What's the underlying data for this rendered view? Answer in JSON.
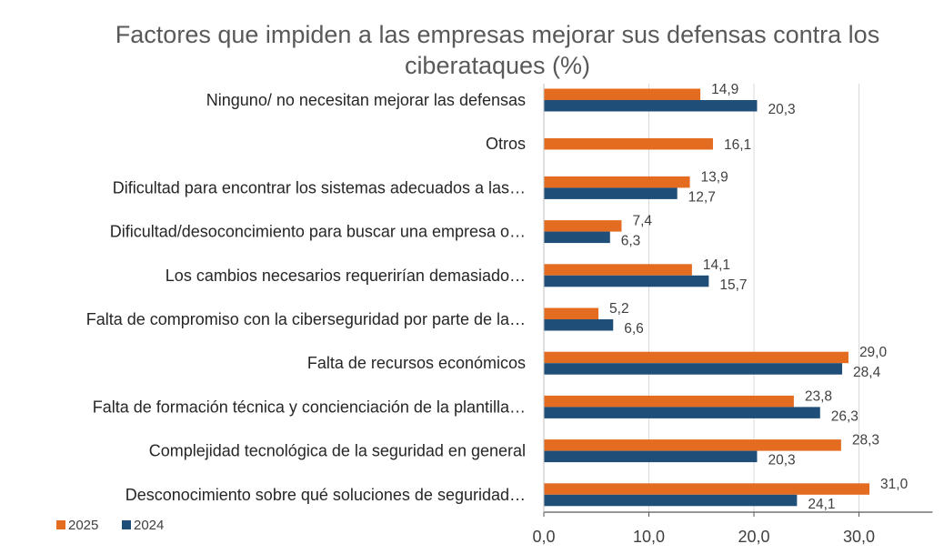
{
  "chart_data": {
    "type": "bar",
    "orientation": "horizontal",
    "title": "Factores que impiden a las empresas mejorar sus defensas contra los ciberataques (%)",
    "title_lines": [
      "Factores que impiden a las empresas mejorar sus defensas contra los",
      "ciberataques (%)"
    ],
    "categories": [
      "Ninguno/ no necesitan mejorar las defensas",
      "Otros",
      "Dificultad para encontrar los sistemas adecuados a las…",
      "Dificultad/desoconcimiento para buscar una empresa o…",
      "Los cambios necesarios requerirían demasiado…",
      "Falta de compromiso con la ciberseguridad por parte de la…",
      "Falta de recursos económicos",
      "Falta de formación técnica y concienciación de la plantilla…",
      "Complejidad tecnológica de la seguridad en general",
      "Desconocimiento sobre qué soluciones de seguridad…"
    ],
    "series": [
      {
        "name": "2025",
        "color": "#E46C21",
        "values": [
          14.9,
          16.1,
          13.9,
          7.4,
          14.1,
          5.2,
          29.0,
          23.8,
          28.3,
          31.0
        ],
        "labels": [
          "14,9",
          "16,1",
          "13,9",
          "7,4",
          "14,1",
          "5,2",
          "29,0",
          "23,8",
          "28,3",
          "31,0"
        ]
      },
      {
        "name": "2024",
        "color": "#1F4E79",
        "values": [
          20.3,
          null,
          12.7,
          6.3,
          15.7,
          6.6,
          28.4,
          26.3,
          20.3,
          24.1
        ],
        "labels": [
          "20,3",
          "",
          "12,7",
          "6,3",
          "15,7",
          "6,6",
          "28,4",
          "26,3",
          "20,3",
          "24,1"
        ]
      }
    ],
    "xlim": [
      0,
      37
    ],
    "xticks": [
      0,
      10,
      20,
      30
    ],
    "xtick_labels": [
      "0,0",
      "10,0",
      "20,0",
      "30,0"
    ],
    "grid": "vertical",
    "legend_position": "bottom-left"
  }
}
